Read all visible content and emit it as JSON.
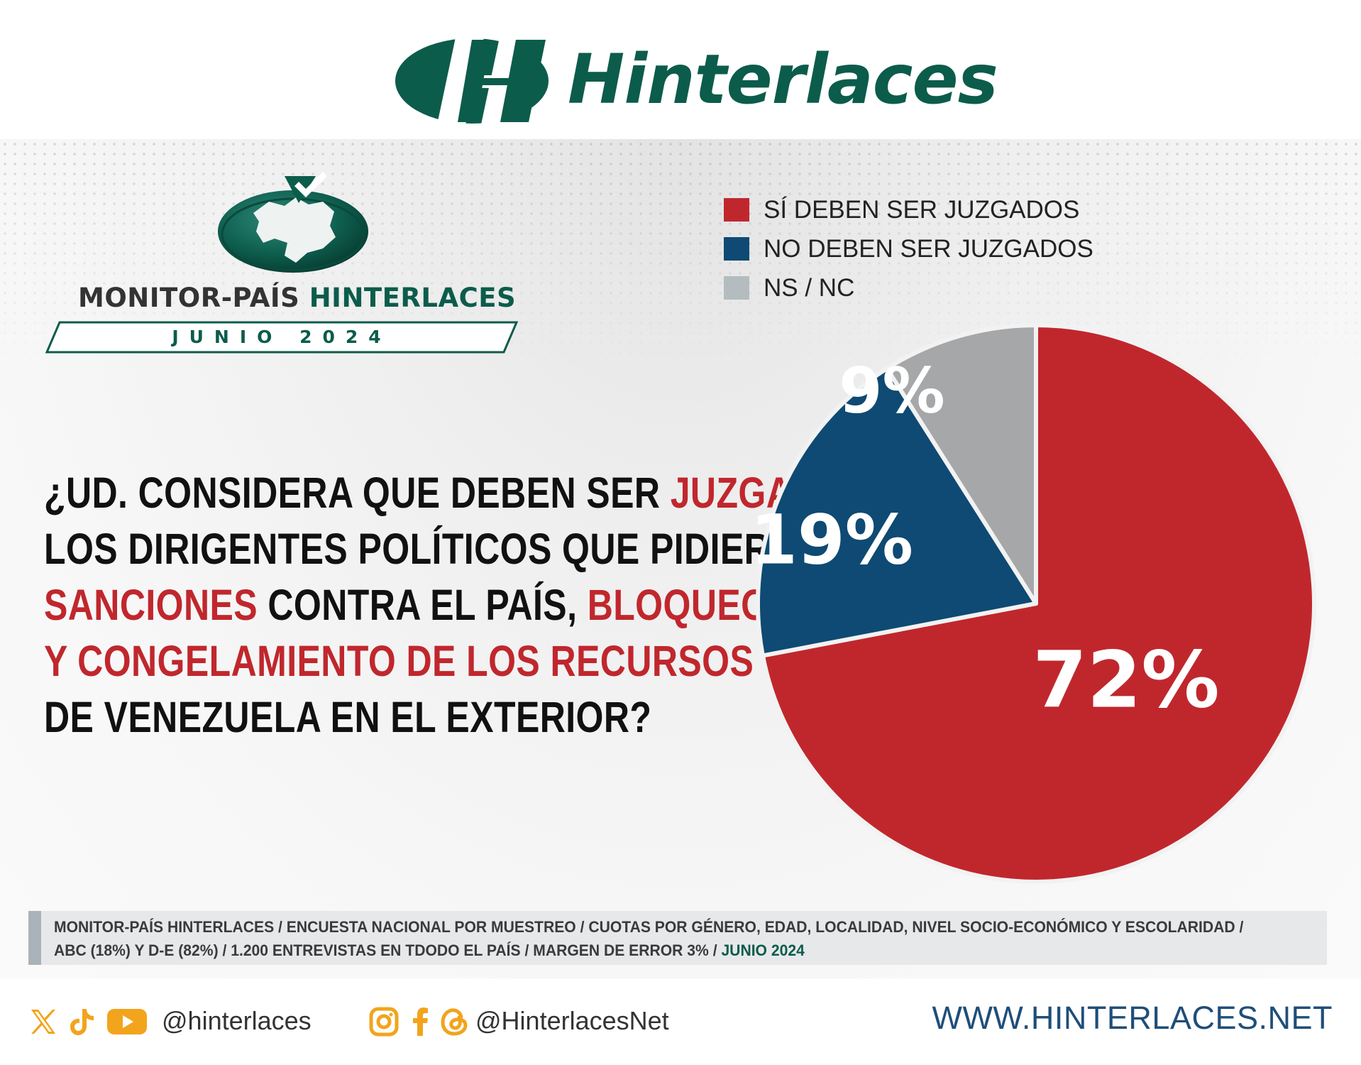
{
  "brand": {
    "name": "Hinterlaces",
    "green": "#0c5c4b"
  },
  "monitor": {
    "title_part1": "MONITOR-PAÍS",
    "title_part2": "HINTERLACES",
    "date": "JUNIO 2024"
  },
  "question": {
    "line1_a": "¿UD. CONSIDERA QUE DEBEN SER ",
    "line1_b": "JUZGADOS",
    "line2": "LOS DIRIGENTES POLÍTICOS QUE PIDIERON",
    "line3_a": "SANCIONES",
    "line3_b": " CONTRA EL PAÍS, ",
    "line3_c": "BLOQUEOS",
    "line4": "Y CONGELAMIENTO DE LOS RECURSOS",
    "line5": " DE VENEZUELA EN EL EXTERIOR?"
  },
  "chart_data": {
    "type": "pie",
    "legend_position": "top-right",
    "series": [
      {
        "name": "SÍ DEBEN SER JUZGADOS",
        "value": 72,
        "label": "72%",
        "color": "#c0272d"
      },
      {
        "name": "NO DEBEN SER JUZGADOS",
        "value": 19,
        "label": "19%",
        "color": "#0e4a73"
      },
      {
        "name": "NS / NC",
        "value": 9,
        "label": "9%",
        "color": "#a6a7a9"
      }
    ],
    "legend_colors": [
      "#c0272d",
      "#0e4a73",
      "#b5bcbf"
    ]
  },
  "footnote": {
    "text": "MONITOR-PAÍS HINTERLACES / ENCUESTA NACIONAL POR MUESTREO / CUOTAS POR GÉNERO, EDAD, LOCALIDAD, NIVEL SOCIO-ECONÓMICO Y ESCOLARIDAD / ABC (18%) Y D-E (82%) / 1.200 ENTREVISTAS EN TDODO EL PAÍS / MARGEN DE ERROR 3% / ",
    "date": "JUNIO 2024"
  },
  "social": {
    "icons_group1": [
      "x-icon",
      "tiktok-icon",
      "youtube-icon"
    ],
    "handle1": "@hinterlaces",
    "icons_group2": [
      "instagram-icon",
      "facebook-icon",
      "threads-icon"
    ],
    "handle2": "@HinterlacesNet",
    "website": "WWW.HINTERLACES.NET",
    "icon_color": "#f2a41c"
  }
}
